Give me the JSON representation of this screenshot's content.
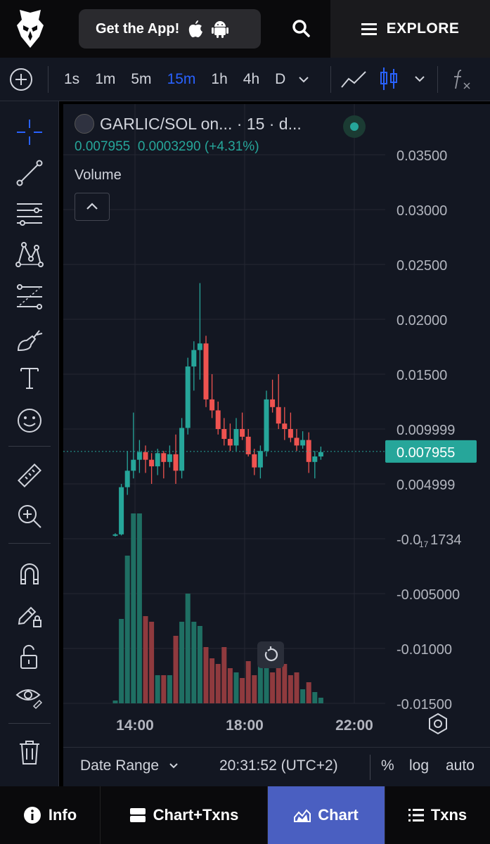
{
  "header": {
    "get_app_label": "Get the App!",
    "explore_label": "EXPLORE"
  },
  "toolbar": {
    "intervals": [
      "1s",
      "1m",
      "5m",
      "15m",
      "1h",
      "4h",
      "D"
    ],
    "active_interval": "15m"
  },
  "legend": {
    "title": "GARLIC/SOL on... · 15 · d...",
    "price": "0.007955",
    "change": "0.0003290 (+4.31%)",
    "volume_label": "Volume"
  },
  "footer": {
    "date_range_label": "Date Range",
    "clock": "20:31:52 (UTC+2)",
    "options": [
      "%",
      "log",
      "auto"
    ]
  },
  "bottom_nav": {
    "items": [
      {
        "label": "Info",
        "icon": "info-icon"
      },
      {
        "label": "Chart+Txns",
        "icon": "split-view-icon"
      },
      {
        "label": "Chart",
        "icon": "area-chart-icon"
      },
      {
        "label": "Txns",
        "icon": "list-icon"
      }
    ],
    "active": "Chart"
  },
  "colors": {
    "up": "#26a69a",
    "down": "#ef5350",
    "accent": "#2962ff",
    "background": "#131722",
    "active_nav": "#4a5fc1"
  },
  "chart_data": {
    "type": "candlestick",
    "price_axis_labels": [
      "0.03500",
      "0.03000",
      "0.02500",
      "0.02000",
      "0.01500",
      "0.009999",
      "0.004999"
    ],
    "current_price_label": "0.007955",
    "volume_axis_labels": [
      "-0.0",
      "17",
      "1734",
      "-0.005000",
      "-0.01000",
      "-0.01500"
    ],
    "x_tick_labels": [
      "14:00",
      "18:00",
      "22:00"
    ],
    "candles": [
      {
        "o": 0.0003,
        "h": 0.0005,
        "l": 0.0002,
        "c": 0.0004
      },
      {
        "o": 0.0004,
        "h": 0.005,
        "l": 0.0003,
        "c": 0.0047
      },
      {
        "o": 0.0047,
        "h": 0.008,
        "l": 0.004,
        "c": 0.0062
      },
      {
        "o": 0.0062,
        "h": 0.0115,
        "l": 0.0055,
        "c": 0.0072
      },
      {
        "o": 0.0072,
        "h": 0.009,
        "l": 0.006,
        "c": 0.0079
      },
      {
        "o": 0.0079,
        "h": 0.0085,
        "l": 0.006,
        "c": 0.0072
      },
      {
        "o": 0.0072,
        "h": 0.0078,
        "l": 0.005,
        "c": 0.0066
      },
      {
        "o": 0.0066,
        "h": 0.0082,
        "l": 0.0058,
        "c": 0.0078
      },
      {
        "o": 0.0078,
        "h": 0.008,
        "l": 0.0055,
        "c": 0.007
      },
      {
        "o": 0.007,
        "h": 0.0085,
        "l": 0.0065,
        "c": 0.0077
      },
      {
        "o": 0.0077,
        "h": 0.0095,
        "l": 0.005,
        "c": 0.0062
      },
      {
        "o": 0.0062,
        "h": 0.011,
        "l": 0.0055,
        "c": 0.0101
      },
      {
        "o": 0.0101,
        "h": 0.0165,
        "l": 0.0095,
        "c": 0.0157
      },
      {
        "o": 0.0157,
        "h": 0.018,
        "l": 0.0135,
        "c": 0.0172
      },
      {
        "o": 0.0172,
        "h": 0.0233,
        "l": 0.0145,
        "c": 0.0178
      },
      {
        "o": 0.0178,
        "h": 0.0185,
        "l": 0.012,
        "c": 0.0127
      },
      {
        "o": 0.0127,
        "h": 0.015,
        "l": 0.011,
        "c": 0.0117
      },
      {
        "o": 0.0117,
        "h": 0.0125,
        "l": 0.0095,
        "c": 0.01
      },
      {
        "o": 0.01,
        "h": 0.011,
        "l": 0.0085,
        "c": 0.0091
      },
      {
        "o": 0.0091,
        "h": 0.0105,
        "l": 0.008,
        "c": 0.0085
      },
      {
        "o": 0.0085,
        "h": 0.011,
        "l": 0.008,
        "c": 0.01
      },
      {
        "o": 0.01,
        "h": 0.0115,
        "l": 0.009,
        "c": 0.0093
      },
      {
        "o": 0.0093,
        "h": 0.01,
        "l": 0.0075,
        "c": 0.0077
      },
      {
        "o": 0.0077,
        "h": 0.0082,
        "l": 0.0058,
        "c": 0.0065
      },
      {
        "o": 0.0065,
        "h": 0.0085,
        "l": 0.0055,
        "c": 0.008
      },
      {
        "o": 0.008,
        "h": 0.0135,
        "l": 0.0075,
        "c": 0.0127
      },
      {
        "o": 0.0127,
        "h": 0.0145,
        "l": 0.0115,
        "c": 0.012
      },
      {
        "o": 0.012,
        "h": 0.015,
        "l": 0.01,
        "c": 0.0105
      },
      {
        "o": 0.0105,
        "h": 0.012,
        "l": 0.009,
        "c": 0.01
      },
      {
        "o": 0.01,
        "h": 0.0115,
        "l": 0.0088,
        "c": 0.0092
      },
      {
        "o": 0.0092,
        "h": 0.01,
        "l": 0.008,
        "c": 0.0085
      },
      {
        "o": 0.0085,
        "h": 0.0098,
        "l": 0.0082,
        "c": 0.009
      },
      {
        "o": 0.009,
        "h": 0.0097,
        "l": 0.006,
        "c": 0.007
      },
      {
        "o": 0.007,
        "h": 0.008,
        "l": 0.0055,
        "c": 0.0075
      },
      {
        "o": 0.0075,
        "h": 0.0084,
        "l": 0.0072,
        "c": 0.0079
      }
    ],
    "volumes": [
      2,
      60,
      105,
      135,
      135,
      62,
      58,
      20,
      20,
      20,
      48,
      58,
      78,
      58,
      55,
      40,
      32,
      28,
      40,
      25,
      22,
      18,
      30,
      20,
      28,
      38,
      22,
      32,
      28,
      20,
      22,
      10,
      15,
      8,
      4
    ]
  }
}
